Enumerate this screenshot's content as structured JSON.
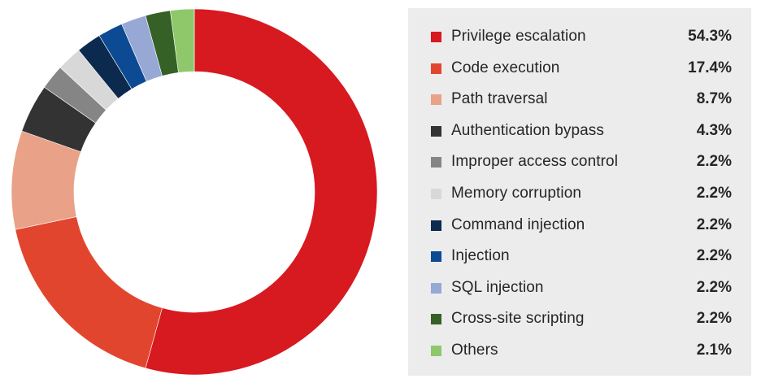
{
  "chart_data": {
    "type": "pie",
    "variant": "donut",
    "categories": [
      "Privilege escalation",
      "Code execution",
      "Path traversal",
      "Authentication bypass",
      "Improper access control",
      "Memory corruption",
      "Command injection",
      "Injection",
      "SQL injection",
      "Cross-site scripting",
      "Others"
    ],
    "values": [
      54.3,
      17.4,
      8.7,
      4.3,
      2.2,
      2.2,
      2.2,
      2.2,
      2.2,
      2.2,
      2.1
    ],
    "value_labels": [
      "54.3%",
      "17.4%",
      "8.7%",
      "4.3%",
      "2.2%",
      "2.2%",
      "2.2%",
      "2.2%",
      "2.2%",
      "2.2%",
      "2.1%"
    ],
    "colors": [
      "#d71920",
      "#e2452e",
      "#e9a188",
      "#333333",
      "#858585",
      "#d8d8d8",
      "#0c2a4d",
      "#0d4a94",
      "#98a8d5",
      "#356127",
      "#8fc86a"
    ],
    "start": "top",
    "direction": "clockwise",
    "legend_position": "right"
  }
}
